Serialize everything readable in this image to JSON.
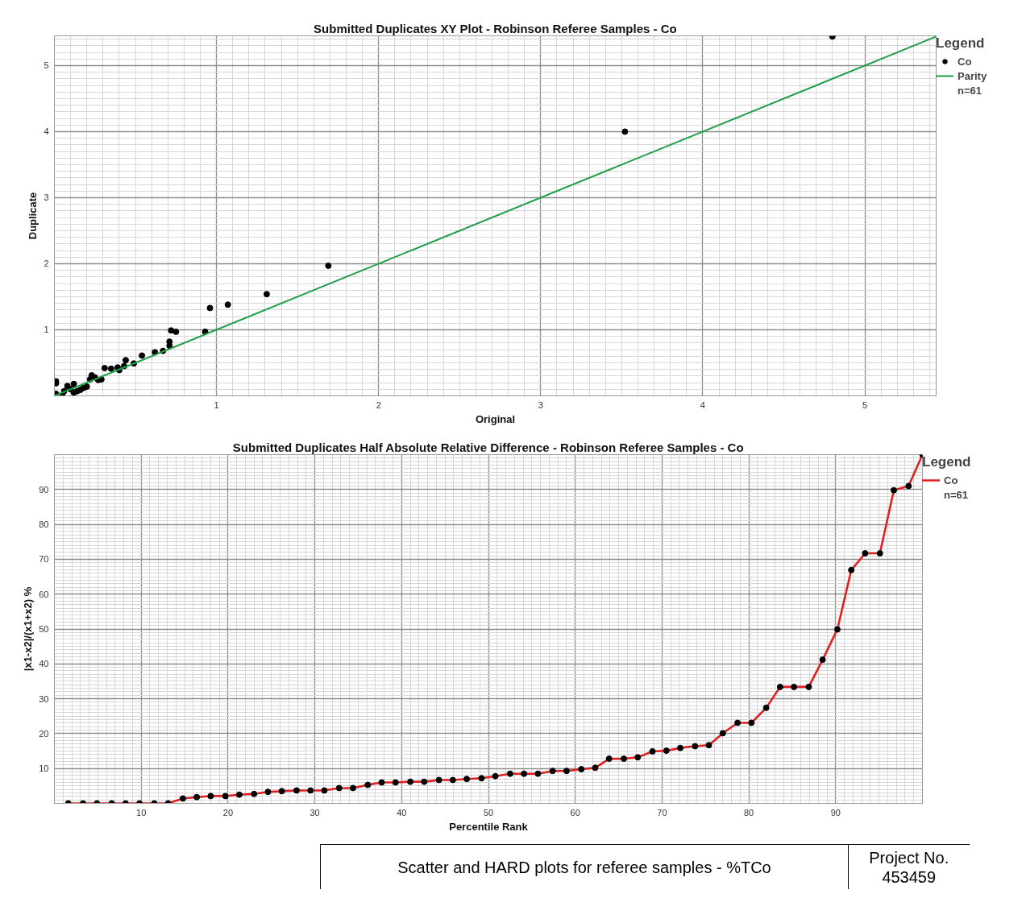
{
  "chart_data": [
    {
      "type": "scatter",
      "title": "Submitted Duplicates XY Plot - Robinson Referee Samples - Co",
      "xlabel": "Original",
      "ylabel": "Duplicate",
      "legend_title": "Legend",
      "annotations": [
        "n=61"
      ],
      "xlim": [
        0,
        5.44
      ],
      "ylim": [
        0,
        5.45
      ],
      "xticks": [
        1,
        2,
        3,
        4,
        5
      ],
      "yticks": [
        1,
        2,
        3,
        4,
        5
      ],
      "grid": true,
      "legend": "top right",
      "marker": "circle",
      "series": [
        {
          "name": "Co",
          "type": "scatter",
          "color": "#000000",
          "x": [
            0.01,
            0.01,
            0.01,
            0.05,
            0.06,
            0.08,
            0.1,
            0.12,
            0.12,
            0.14,
            0.16,
            0.18,
            0.2,
            0.22,
            0.23,
            0.25,
            0.27,
            0.29,
            0.31,
            0.35,
            0.39,
            0.4,
            0.43,
            0.44,
            0.49,
            0.54,
            0.62,
            0.67,
            0.71,
            0.71,
            0.72,
            0.75,
            0.93,
            0.96,
            1.07,
            1.31,
            1.69,
            3.52,
            4.8
          ],
          "values": [
            0.22,
            0.19,
            0.03,
            0.0,
            0.07,
            0.15,
            0.1,
            0.18,
            0.05,
            0.07,
            0.09,
            0.12,
            0.14,
            0.25,
            0.31,
            0.28,
            0.24,
            0.25,
            0.42,
            0.41,
            0.43,
            0.39,
            0.45,
            0.54,
            0.49,
            0.61,
            0.66,
            0.68,
            0.76,
            0.82,
            0.99,
            0.97,
            0.97,
            1.33,
            1.38,
            1.54,
            1.97,
            4.0,
            5.44
          ]
        },
        {
          "name": "Parity",
          "type": "line",
          "color": "#1e9e4a",
          "marker": "none",
          "x": [
            0,
            5.44
          ],
          "values": [
            0,
            5.44
          ]
        }
      ]
    },
    {
      "type": "line",
      "title": "Submitted Duplicates Half Absolute Relative Difference - Robinson Referee Samples - Co",
      "xlabel": "Percentile Rank",
      "ylabel": "|x1-x2|/(x1+x2) %",
      "legend_title": "Legend",
      "annotations": [
        "n=61",
        "Scatter and HARD plots for referee samples - %TCo",
        "Project No. 453459"
      ],
      "xlim": [
        0,
        100
      ],
      "ylim": [
        0,
        100
      ],
      "xticks": [
        10,
        20,
        30,
        40,
        50,
        60,
        70,
        80,
        90
      ],
      "yticks": [
        10,
        20,
        30,
        40,
        50,
        60,
        70,
        80,
        90
      ],
      "grid": true,
      "legend": "top right",
      "marker": "circle",
      "x": [
        1.6,
        3.3,
        4.9,
        6.6,
        8.2,
        9.8,
        11.5,
        13.1,
        14.8,
        16.4,
        18.0,
        19.7,
        21.3,
        23.0,
        24.6,
        26.2,
        27.9,
        29.5,
        31.1,
        32.8,
        34.4,
        36.1,
        37.7,
        39.3,
        41.0,
        42.6,
        44.3,
        45.9,
        47.5,
        49.2,
        50.8,
        52.5,
        54.1,
        55.7,
        57.4,
        59.0,
        60.7,
        62.3,
        63.9,
        65.6,
        67.2,
        68.9,
        70.5,
        72.1,
        73.8,
        75.4,
        77.0,
        78.7,
        80.3,
        82.0,
        83.6,
        85.2,
        86.9,
        88.5,
        90.2,
        91.8,
        93.4,
        95.1,
        96.7,
        98.4,
        100
      ],
      "series": [
        {
          "name": "Co",
          "color": "#e0201e",
          "values": [
            0,
            0,
            0,
            0,
            0,
            0,
            0,
            0,
            1.4,
            1.8,
            2.1,
            2.1,
            2.5,
            2.7,
            3.3,
            3.5,
            3.7,
            3.7,
            3.7,
            4.4,
            4.4,
            5.3,
            6.0,
            6.0,
            6.2,
            6.2,
            6.7,
            6.7,
            7.0,
            7.2,
            7.8,
            8.5,
            8.5,
            8.5,
            9.3,
            9.3,
            9.8,
            10.2,
            12.8,
            12.8,
            13.2,
            14.9,
            15.1,
            15.9,
            16.4,
            16.7,
            20.1,
            23.1,
            23.1,
            27.4,
            33.4,
            33.4,
            33.4,
            41.2,
            49.9,
            66.9,
            71.7,
            71.7,
            89.8,
            91.0,
            100
          ]
        }
      ]
    }
  ]
}
